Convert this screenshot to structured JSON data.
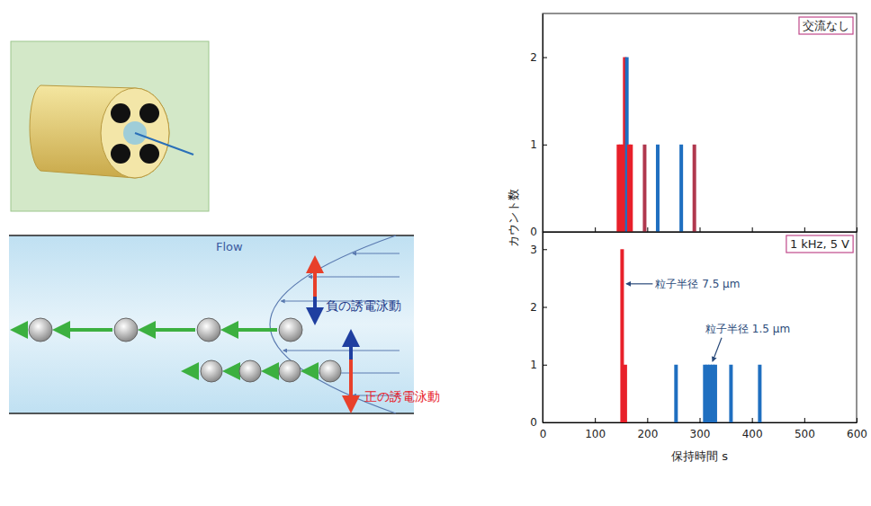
{
  "diagram": {
    "flow_label": "Flow",
    "negative_label": "負の誘電泳動",
    "positive_label": "正の誘電泳動"
  },
  "chart_data": [
    {
      "type": "bar",
      "title": "交流なし",
      "x": [
        145,
        149,
        153,
        157,
        161,
        165,
        169,
        195,
        220,
        265,
        290
      ],
      "values": [
        1,
        1,
        1,
        2,
        2,
        1,
        1,
        1,
        1,
        1,
        1
      ],
      "colors": [
        "#e8202a",
        "#e8202a",
        "#e8202a",
        "#e8202a",
        "#1f6fc0",
        "#e8202a",
        "#e8202a",
        "#b0384e",
        "#1f6fc0",
        "#1f6fc0",
        "#b0384e"
      ],
      "xlim": [
        0,
        600
      ],
      "xticks": [
        0,
        100,
        200,
        300,
        400,
        500,
        600
      ],
      "ylim": [
        0,
        2.5
      ],
      "yticks": [
        0,
        1,
        2
      ],
      "tick_labels": "y",
      "ylabel": "カウント数"
    },
    {
      "type": "bar",
      "title": "1 kHz, 5 V",
      "x": [
        152,
        158,
        255,
        310,
        315,
        320,
        325,
        330,
        360,
        415
      ],
      "values": [
        3,
        1,
        1,
        1,
        1,
        1,
        1,
        1,
        1,
        1
      ],
      "colors": [
        "#e8202a",
        "#e8202a",
        "#1f6fc0",
        "#1f6fc0",
        "#1f6fc0",
        "#1f6fc0",
        "#1f6fc0",
        "#1f6fc0",
        "#1f6fc0",
        "#1f6fc0"
      ],
      "xlim": [
        0,
        600
      ],
      "xticks": [
        0,
        100,
        200,
        300,
        400,
        500,
        600
      ],
      "ylim": [
        0,
        3.3
      ],
      "yticks": [
        0,
        1,
        2,
        3
      ],
      "xlabel": "保持時間 s",
      "annotations": [
        "粒子半径 7.5 µm",
        "粒子半径 1.5 µm"
      ]
    }
  ]
}
